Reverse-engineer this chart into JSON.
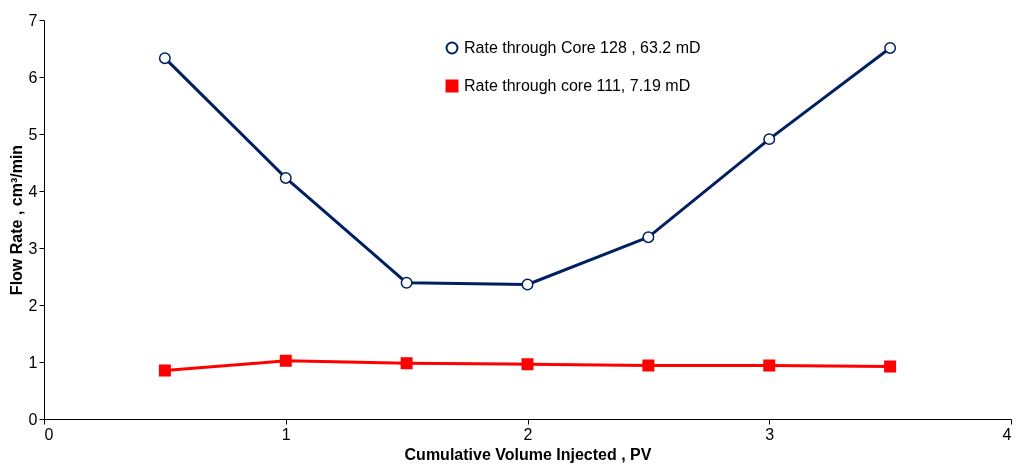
{
  "chart_data": {
    "type": "line",
    "xlabel": "Cumulative Volume Injected , PV",
    "ylabel": "Flow Rate , cm³/min",
    "x": [
      0.5,
      1,
      1.5,
      2,
      2.5,
      3,
      3.5
    ],
    "series": [
      {
        "name": "Rate through Core 128 , 63.2 mD",
        "color": "#002060",
        "marker": "circle",
        "values": [
          6.33,
          4.23,
          2.39,
          2.36,
          3.19,
          4.91,
          6.51
        ]
      },
      {
        "name": "Rate through core 111, 7.19 mD",
        "color": "#ff0000",
        "marker": "square",
        "values": [
          0.85,
          1.02,
          0.98,
          0.96,
          0.94,
          0.94,
          0.92
        ]
      }
    ],
    "xlim": [
      0,
      4
    ],
    "xticks": [
      0,
      1,
      2,
      3,
      4
    ],
    "ylim": [
      0,
      7
    ],
    "yticks": [
      0,
      1,
      2,
      3,
      4,
      5,
      6,
      7
    ],
    "grid": false,
    "legend": "top"
  }
}
